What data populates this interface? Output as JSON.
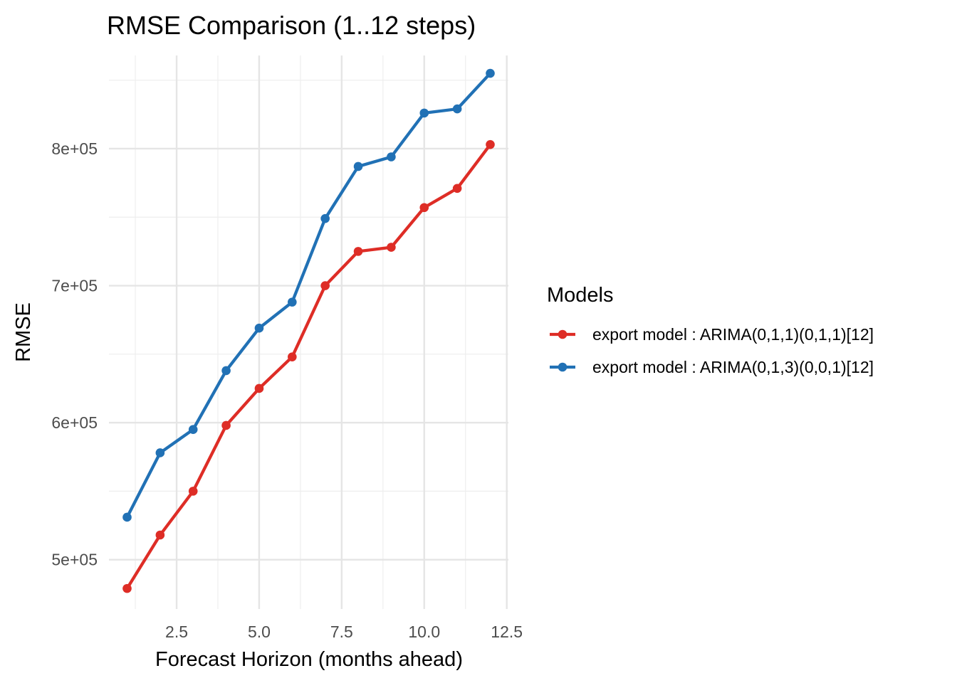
{
  "chart_data": {
    "type": "line",
    "title": "RMSE Comparison (1..12 steps)",
    "xlabel": "Forecast Horizon (months ahead)",
    "ylabel": "RMSE",
    "x": [
      1,
      2,
      3,
      4,
      5,
      6,
      7,
      8,
      9,
      10,
      11,
      12
    ],
    "xlim": [
      0.45,
      12.55
    ],
    "ylim": [
      464000,
      868000
    ],
    "xticks": [
      2.5,
      5.0,
      7.5,
      10.0,
      12.5
    ],
    "xtick_labels": [
      "2.5",
      "5.0",
      "7.5",
      "10.0",
      "12.5"
    ],
    "yticks": [
      500000,
      600000,
      700000,
      800000
    ],
    "ytick_labels": [
      "5e+05",
      "6e+05",
      "7e+05",
      "8e+05"
    ],
    "grid": true,
    "legend_title": "Models",
    "legend_position": "right",
    "series": [
      {
        "name": "export model : ARIMA(0,1,1)(0,1,1)[12]",
        "color": "#de2d26",
        "values": [
          479000,
          518000,
          550000,
          598000,
          625000,
          648000,
          700000,
          725000,
          728000,
          757000,
          771000,
          803000
        ]
      },
      {
        "name": "export model : ARIMA(0,1,3)(0,0,1)[12]",
        "color": "#2171b5",
        "values": [
          531000,
          578000,
          595000,
          638000,
          669000,
          688000,
          749000,
          787000,
          794000,
          826000,
          829000,
          855000
        ]
      }
    ]
  }
}
